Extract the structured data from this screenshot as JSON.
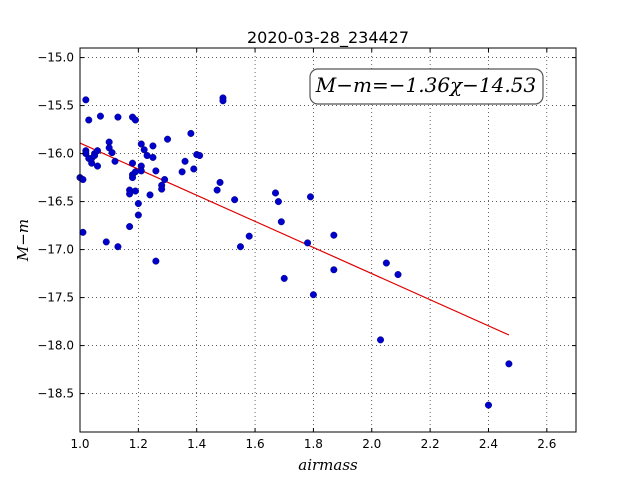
{
  "chart_data": {
    "type": "scatter",
    "title": "2020-03-28_234427",
    "xlabel": "airmass",
    "ylabel": "M−m",
    "xlim": [
      1.0,
      2.7
    ],
    "ylim": [
      -18.9,
      -14.9
    ],
    "y_inverted": true,
    "grid": true,
    "grid_style": "dotted",
    "x_ticks": [
      "1.0",
      "1.2",
      "1.4",
      "1.6",
      "1.8",
      "2.0",
      "2.2",
      "2.4",
      "2.6"
    ],
    "y_ticks": [
      "−15.0",
      "−15.5",
      "−16.0",
      "−16.5",
      "−17.0",
      "−17.5",
      "−18.0",
      "−18.5"
    ],
    "annotation": "M−m=−1.36χ−14.53",
    "fit_line": {
      "slope": -1.36,
      "intercept": -14.53,
      "x_range": [
        1.0,
        2.47
      ],
      "color": "#e00000"
    },
    "point_color": "#0000cc",
    "points": [
      [
        1.0,
        -16.25
      ],
      [
        1.01,
        -16.27
      ],
      [
        1.01,
        -16.82
      ],
      [
        1.02,
        -15.97
      ],
      [
        1.02,
        -16.0
      ],
      [
        1.02,
        -15.44
      ],
      [
        1.03,
        -16.05
      ],
      [
        1.03,
        -15.65
      ],
      [
        1.04,
        -16.1
      ],
      [
        1.04,
        -16.05
      ],
      [
        1.05,
        -16.0
      ],
      [
        1.05,
        -16.02
      ],
      [
        1.06,
        -16.13
      ],
      [
        1.06,
        -15.97
      ],
      [
        1.07,
        -15.61
      ],
      [
        1.09,
        -16.92
      ],
      [
        1.1,
        -15.88
      ],
      [
        1.1,
        -15.94
      ],
      [
        1.11,
        -15.99
      ],
      [
        1.12,
        -16.08
      ],
      [
        1.13,
        -15.62
      ],
      [
        1.13,
        -16.97
      ],
      [
        1.17,
        -16.76
      ],
      [
        1.17,
        -16.38
      ],
      [
        1.17,
        -16.42
      ],
      [
        1.18,
        -16.1
      ],
      [
        1.18,
        -16.22
      ],
      [
        1.18,
        -16.25
      ],
      [
        1.18,
        -15.62
      ],
      [
        1.19,
        -16.19
      ],
      [
        1.19,
        -16.39
      ],
      [
        1.19,
        -15.65
      ],
      [
        1.2,
        -16.52
      ],
      [
        1.2,
        -16.64
      ],
      [
        1.21,
        -15.9
      ],
      [
        1.21,
        -16.13
      ],
      [
        1.21,
        -16.18
      ],
      [
        1.22,
        -15.96
      ],
      [
        1.23,
        -16.02
      ],
      [
        1.24,
        -16.43
      ],
      [
        1.25,
        -15.92
      ],
      [
        1.25,
        -16.04
      ],
      [
        1.26,
        -16.18
      ],
      [
        1.26,
        -17.12
      ],
      [
        1.28,
        -16.33
      ],
      [
        1.28,
        -16.37
      ],
      [
        1.29,
        -16.27
      ],
      [
        1.3,
        -15.85
      ],
      [
        1.35,
        -16.19
      ],
      [
        1.36,
        -16.08
      ],
      [
        1.38,
        -15.79
      ],
      [
        1.39,
        -16.16
      ],
      [
        1.4,
        -16.01
      ],
      [
        1.41,
        -16.02
      ],
      [
        1.47,
        -16.38
      ],
      [
        1.48,
        -16.3
      ],
      [
        1.49,
        -15.42
      ],
      [
        1.49,
        -15.45
      ],
      [
        1.53,
        -16.48
      ],
      [
        1.55,
        -16.97
      ],
      [
        1.58,
        -16.86
      ],
      [
        1.67,
        -16.41
      ],
      [
        1.68,
        -16.5
      ],
      [
        1.69,
        -16.71
      ],
      [
        1.7,
        -17.3
      ],
      [
        1.78,
        -16.93
      ],
      [
        1.79,
        -16.45
      ],
      [
        1.8,
        -17.47
      ],
      [
        1.87,
        -16.85
      ],
      [
        1.87,
        -17.21
      ],
      [
        2.03,
        -17.94
      ],
      [
        2.05,
        -17.14
      ],
      [
        2.09,
        -17.26
      ],
      [
        2.4,
        -18.62
      ],
      [
        2.47,
        -18.19
      ]
    ]
  }
}
